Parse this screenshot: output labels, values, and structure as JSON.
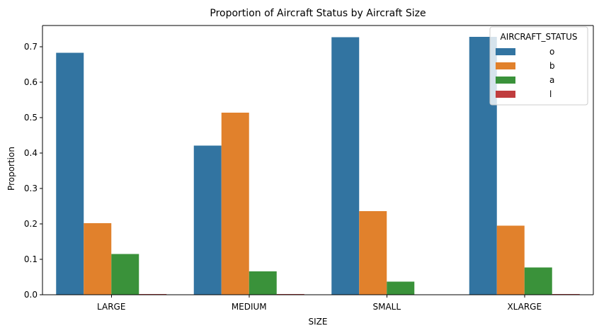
{
  "chart_data": {
    "type": "bar",
    "title": "Proportion of Aircraft Status by Aircraft Size",
    "xlabel": "SIZE",
    "ylabel": "Proportion",
    "categories": [
      "LARGE",
      "MEDIUM",
      "SMALL",
      "XLARGE"
    ],
    "ylim": [
      0,
      0.76
    ],
    "yticks": [
      0.0,
      0.1,
      0.2,
      0.3,
      0.4,
      0.5,
      0.6,
      0.7
    ],
    "ytick_labels": [
      "0.0",
      "0.1",
      "0.2",
      "0.3",
      "0.4",
      "0.5",
      "0.6",
      "0.7"
    ],
    "grid": false,
    "legend": {
      "title": "AIRCRAFT_STATUS",
      "position": "top-right"
    },
    "series": [
      {
        "name": "o",
        "color": "#3274a1",
        "values": [
          0.683,
          0.421,
          0.727,
          0.728
        ]
      },
      {
        "name": "b",
        "color": "#e1812c",
        "values": [
          0.202,
          0.514,
          0.236,
          0.195
        ]
      },
      {
        "name": "a",
        "color": "#3a923a",
        "values": [
          0.115,
          0.066,
          0.037,
          0.077
        ]
      },
      {
        "name": "l",
        "color": "#c03d3e",
        "values": [
          0.002,
          0.002,
          0.0,
          0.002
        ]
      }
    ]
  }
}
